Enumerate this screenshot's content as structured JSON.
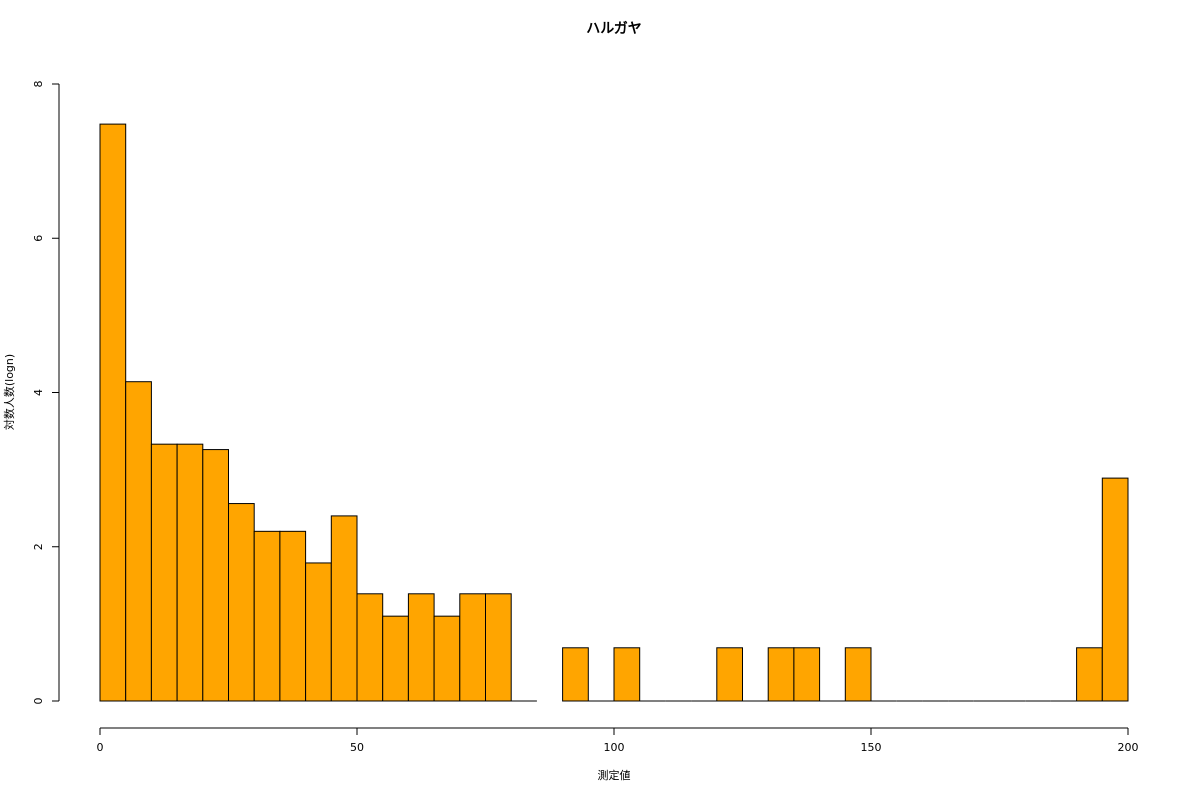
{
  "chart_data": {
    "type": "histogram",
    "title": "ハルガヤ",
    "xlabel": "測定値",
    "ylabel": "対数人数(logn)",
    "bins": [
      0,
      5,
      10,
      15,
      20,
      25,
      30,
      35,
      40,
      45,
      50,
      55,
      60,
      65,
      70,
      75,
      80,
      85,
      90,
      95,
      100,
      105,
      110,
      115,
      120,
      125,
      130,
      135,
      140,
      145,
      150,
      155,
      160,
      165,
      170,
      175,
      180,
      185,
      190,
      195,
      200
    ],
    "values": [
      7.48,
      4.14,
      3.33,
      3.33,
      3.26,
      2.56,
      2.2,
      2.2,
      1.79,
      2.4,
      1.39,
      1.1,
      1.39,
      1.1,
      1.39,
      1.39,
      0,
      null,
      0.69,
      0,
      0.69,
      0,
      0,
      0,
      0.69,
      0,
      0.69,
      0.69,
      0,
      0.69,
      0,
      0,
      0,
      0,
      0,
      0,
      0,
      0,
      0.69,
      2.89
    ],
    "color": "#ffa500",
    "xlim": [
      0,
      200
    ],
    "xticks": [
      0,
      50,
      100,
      150,
      200
    ],
    "ylim": [
      0,
      8
    ],
    "yticks": [
      0,
      2,
      4,
      6,
      8
    ]
  }
}
